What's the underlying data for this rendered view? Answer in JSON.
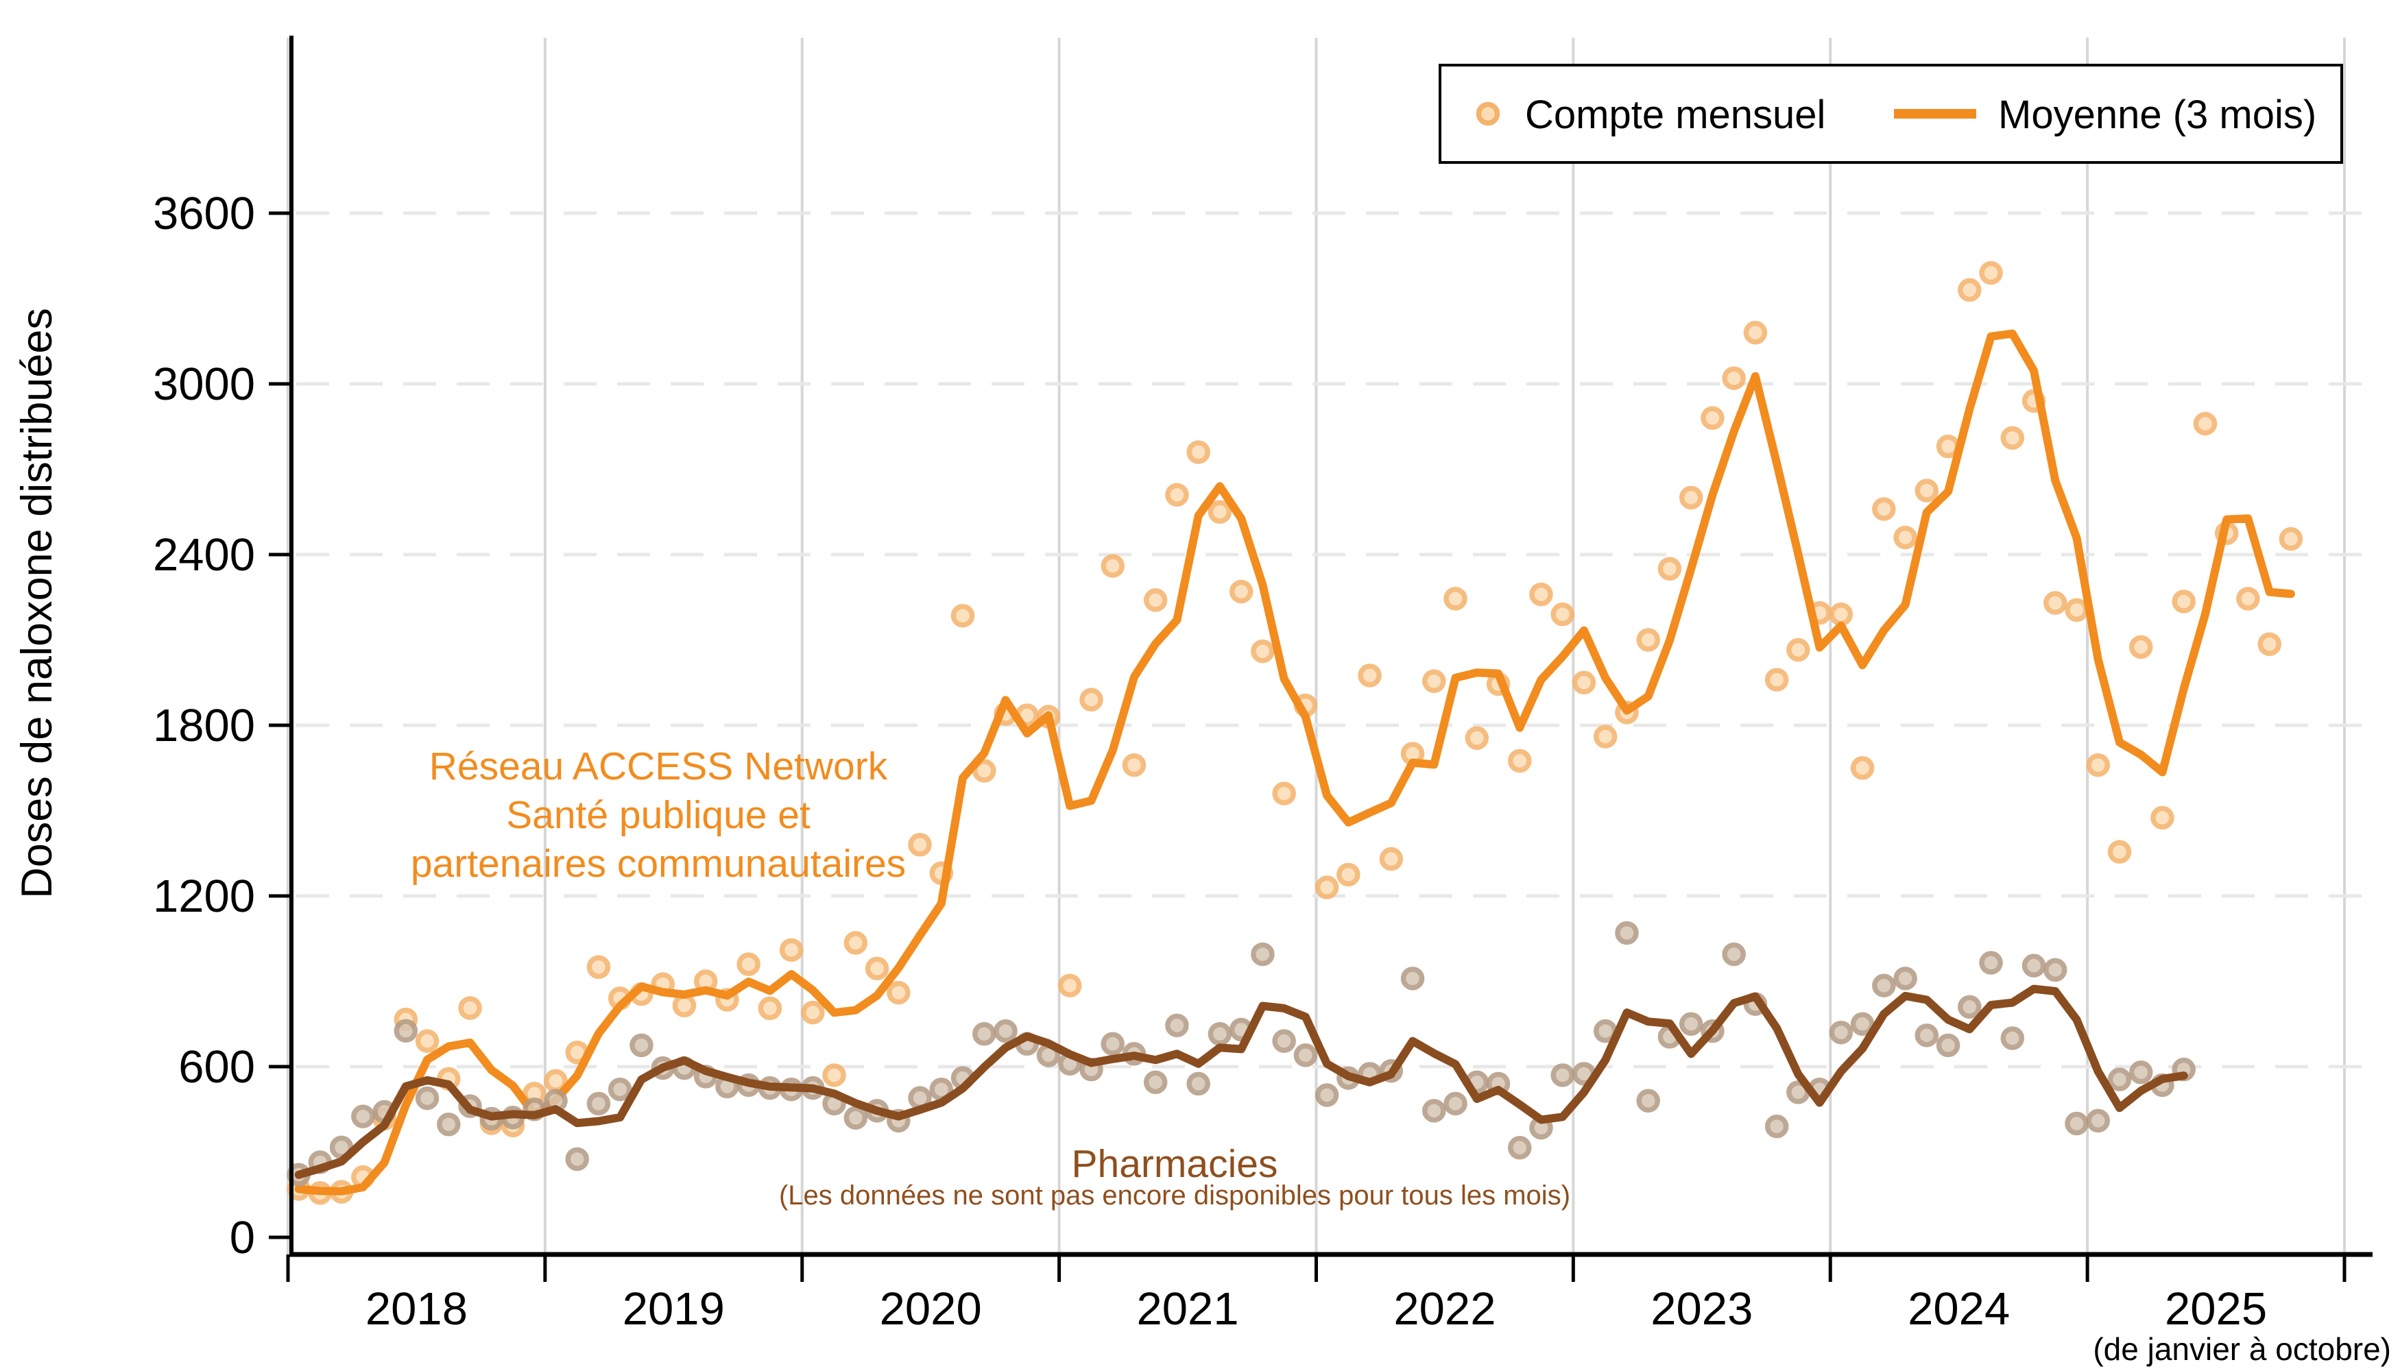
{
  "y_axis": {
    "label": "Doses de naloxone distribuées",
    "ticks": [
      0,
      600,
      1200,
      1800,
      2400,
      3000,
      3600
    ]
  },
  "x_axis": {
    "year_labels": [
      "2018",
      "2019",
      "2020",
      "2021",
      "2022",
      "2023",
      "2024",
      "2025"
    ],
    "note": "(de janvier à octobre)"
  },
  "legend": {
    "monthly_label": "Compte mensuel",
    "ma_label": "Moyenne (3 mois)"
  },
  "annotations": {
    "access_line1": "Réseau ACCESS Network",
    "access_line2": "Santé publique et",
    "access_line3": "partenaires communautaires",
    "pharmacies_title": "Pharmacies",
    "pharmacies_note": "(Les données ne sont pas encore disponibles pour tous les mois)"
  },
  "colors": {
    "access_line": "#F28C1E",
    "access_dot_fill": "#FBDCB4",
    "access_dot_ring": "#F5B26B",
    "pharmacies_line": "#8A4D20",
    "pharmacies_dot_fill": "#D6C6B5",
    "pharmacies_dot_ring": "#B29A83",
    "grid_dashed": "#E8E8E8",
    "grid_vertical": "#D6D6D6",
    "axis": "#000000"
  },
  "chart_data": {
    "type": "scatter+moving-average-line",
    "title": "",
    "ylabel": "Doses de naloxone distribuées",
    "ylim": [
      0,
      3800
    ],
    "yticks": [
      0,
      600,
      1200,
      1800,
      2400,
      3000,
      3600
    ],
    "start_month": "2018-01",
    "ma_window": 3,
    "x_year_ticks": [
      2018,
      2019,
      2020,
      2021,
      2022,
      2023,
      2024,
      2025,
      2026
    ],
    "series": [
      {
        "name": "Réseau ACCESS Network Santé publique et partenaires communautaires",
        "legend_dot": "Compte mensuel",
        "legend_line": "Moyenne (3 mois)",
        "values": [
          170,
          156,
          160,
          212,
          417,
          766,
          690,
          557,
          806,
          401,
          393,
          505,
          550,
          650,
          950,
          840,
          855,
          890,
          815,
          900,
          835,
          960,
          805,
          1010,
          790,
          570,
          1035,
          945,
          860,
          1380,
          1280,
          2185,
          1640,
          1840,
          1835,
          1830,
          885,
          1890,
          2360,
          1660,
          2240,
          2610,
          2760,
          2550,
          2270,
          2060,
          1560,
          1870,
          1230,
          1275,
          1975,
          1330,
          1700,
          1955,
          2245,
          1755,
          1945,
          1675,
          2260,
          2190,
          1950,
          1760,
          1845,
          2100,
          2350,
          2600,
          2880,
          3020,
          3180,
          1960,
          2065,
          2195,
          2190,
          1650,
          2560,
          2460,
          2625,
          2780,
          3330,
          3390,
          2810,
          2940,
          2230,
          2205,
          1660,
          1355,
          2075,
          1475,
          2235,
          2860,
          2475,
          2245,
          2085,
          2455
        ]
      },
      {
        "name": "Pharmacies",
        "legend_dot": "Compte mensuel",
        "legend_line": "Moyenne (3 mois)",
        "values": [
          220,
          264,
          316,
          425,
          441,
          726,
          489,
          397,
          461,
          417,
          421,
          450,
          480,
          275,
          470,
          520,
          675,
          595,
          595,
          565,
          530,
          535,
          525,
          520,
          525,
          470,
          420,
          445,
          410,
          490,
          520,
          560,
          715,
          725,
          680,
          640,
          610,
          590,
          680,
          645,
          545,
          745,
          540,
          715,
          730,
          995,
          690,
          640,
          500,
          560,
          575,
          585,
          910,
          445,
          470,
          545,
          540,
          315,
          385,
          570,
          575,
          725,
          1070,
          480,
          705,
          750,
          725,
          995,
          820,
          390,
          510,
          520,
          720,
          750,
          885,
          910,
          710,
          675,
          810,
          965,
          700,
          955,
          940,
          400,
          410,
          555,
          580,
          535,
          590
        ]
      }
    ]
  }
}
